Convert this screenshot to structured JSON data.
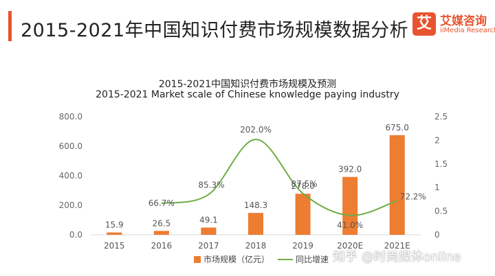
{
  "header": {
    "title": "2015-2021年中国知识付费市场规模数据分析"
  },
  "logo": {
    "mark": "艾",
    "name_cn": "艾媒咨询",
    "name_en": "iiMedia Research"
  },
  "watermark": {
    "text": "知乎 @时尚媒体online"
  },
  "colors": {
    "accent": "#e8542f",
    "bar": "#ed7d31",
    "line": "#70ad47"
  },
  "chart_data": {
    "type": "bar",
    "title": "2015-2021中国知识付费市场规模及预测",
    "subtitle": "2015-2021 Market scale of Chinese knowledge paying industry",
    "categories": [
      "2015",
      "2016",
      "2017",
      "2018",
      "2019",
      "2020E",
      "2021E"
    ],
    "series": [
      {
        "name": "市场规模（亿元）",
        "type": "bar",
        "axis": "left",
        "values": [
          15.9,
          26.5,
          49.1,
          148.3,
          278.0,
          392.0,
          675.0
        ],
        "labels": [
          "15.9",
          "26.5",
          "49.1",
          "148.3",
          "278.0",
          "392.0",
          "675.0"
        ]
      },
      {
        "name": "同比增速",
        "type": "line",
        "axis": "right",
        "values": [
          null,
          0.667,
          0.853,
          2.02,
          0.875,
          0.41,
          0.722
        ],
        "labels": [
          "",
          "66.7%",
          "85.3%",
          "202.0%",
          "87.5%",
          "41.0%",
          "72.2%"
        ]
      }
    ],
    "y_left": {
      "lim": [
        0,
        800
      ],
      "ticks": [
        "0.0",
        "200.0",
        "400.0",
        "600.0",
        "800.0"
      ]
    },
    "y_right": {
      "lim": [
        0,
        2.5
      ],
      "ticks": [
        "0",
        "0.5",
        "1",
        "1.5",
        "2",
        "2.5"
      ]
    },
    "legend": "bottom",
    "grid": false
  }
}
